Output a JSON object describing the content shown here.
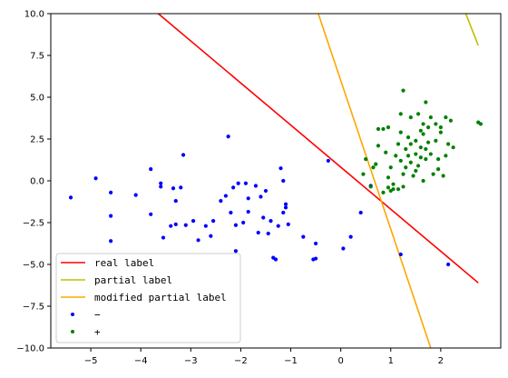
{
  "chart_data": {
    "type": "scatter",
    "xlim": [
      -5.8,
      3.2
    ],
    "ylim": [
      -10,
      10
    ],
    "x_ticks": [
      -5,
      -4,
      -3,
      -2,
      -1,
      0,
      1,
      2
    ],
    "y_ticks": [
      10.0,
      7.5,
      5.0,
      2.5,
      0.0,
      -2.5,
      -5.0,
      -7.5,
      -10.0
    ],
    "x_tick_labels": [
      "−5",
      "−4",
      "−3",
      "−2",
      "−1",
      "0",
      "1",
      "2"
    ],
    "y_tick_labels": [
      "10.0",
      "7.5",
      "5.0",
      "2.5",
      "0.0",
      "−2.5",
      "−5.0",
      "−7.5",
      "−10.0"
    ],
    "grid": false,
    "legend_position": "lower-left",
    "lines": [
      {
        "name": "real label",
        "color": "#ff0000",
        "x": [
          -3.65,
          2.75
        ],
        "y": [
          10.0,
          -6.1
        ]
      },
      {
        "name": "partial label",
        "color": "#bfbf00",
        "x": [
          2.5,
          2.75
        ],
        "y": [
          10.0,
          8.1
        ]
      },
      {
        "name": "modified partial label",
        "color": "#ffa500",
        "x": [
          -0.45,
          1.8
        ],
        "y": [
          10.0,
          -10.0
        ]
      }
    ],
    "series": [
      {
        "name": "−",
        "color": "#0000ff",
        "points": [
          [
            -5.4,
            -1.0
          ],
          [
            -4.9,
            0.15
          ],
          [
            -4.6,
            -0.7
          ],
          [
            -4.6,
            -2.1
          ],
          [
            -4.6,
            -3.6
          ],
          [
            -4.1,
            -0.85
          ],
          [
            -3.8,
            0.7
          ],
          [
            -3.8,
            -2.0
          ],
          [
            -3.6,
            -0.15
          ],
          [
            -3.6,
            -0.35
          ],
          [
            -3.55,
            -3.4
          ],
          [
            -3.4,
            -2.7
          ],
          [
            -3.35,
            -0.45
          ],
          [
            -3.3,
            -1.2
          ],
          [
            -3.3,
            -2.6
          ],
          [
            -3.2,
            -0.4
          ],
          [
            -3.15,
            1.55
          ],
          [
            -3.1,
            -2.65
          ],
          [
            -2.95,
            -2.4
          ],
          [
            -2.85,
            -3.55
          ],
          [
            -2.7,
            -2.7
          ],
          [
            -2.6,
            -3.3
          ],
          [
            -2.55,
            -2.4
          ],
          [
            -2.4,
            -1.2
          ],
          [
            -2.3,
            -0.9
          ],
          [
            -2.25,
            2.65
          ],
          [
            -2.2,
            -1.9
          ],
          [
            -2.15,
            -0.4
          ],
          [
            -2.1,
            -4.2
          ],
          [
            -2.1,
            -2.65
          ],
          [
            -2.05,
            -0.15
          ],
          [
            -1.95,
            -2.5
          ],
          [
            -1.9,
            -0.15
          ],
          [
            -1.85,
            -1.05
          ],
          [
            -1.85,
            -1.85
          ],
          [
            -1.7,
            -0.3
          ],
          [
            -1.65,
            -3.1
          ],
          [
            -1.6,
            -0.95
          ],
          [
            -1.55,
            -2.2
          ],
          [
            -1.5,
            -0.6
          ],
          [
            -1.45,
            -3.15
          ],
          [
            -1.4,
            -2.4
          ],
          [
            -1.35,
            -4.6
          ],
          [
            -1.3,
            -4.7
          ],
          [
            -1.25,
            -2.7
          ],
          [
            -1.2,
            0.75
          ],
          [
            -1.15,
            -1.9
          ],
          [
            -1.15,
            0.0
          ],
          [
            -1.1,
            -1.4
          ],
          [
            -1.1,
            -1.6
          ],
          [
            -1.05,
            -2.6
          ],
          [
            -0.75,
            -3.35
          ],
          [
            -0.55,
            -4.7
          ],
          [
            -0.5,
            -3.75
          ],
          [
            -0.5,
            -4.65
          ],
          [
            -0.25,
            1.2
          ],
          [
            0.05,
            -4.05
          ],
          [
            0.2,
            -3.35
          ],
          [
            0.4,
            -1.9
          ],
          [
            0.6,
            -0.3
          ],
          [
            1.2,
            -4.4
          ],
          [
            2.15,
            -5.0
          ]
        ]
      },
      {
        "name": "+",
        "color": "#008000",
        "points": [
          [
            0.45,
            0.4
          ],
          [
            0.5,
            1.3
          ],
          [
            0.6,
            -0.35
          ],
          [
            0.65,
            0.8
          ],
          [
            0.7,
            1.0
          ],
          [
            0.75,
            2.1
          ],
          [
            0.75,
            3.1
          ],
          [
            0.85,
            3.1
          ],
          [
            0.85,
            -0.7
          ],
          [
            0.9,
            1.7
          ],
          [
            0.95,
            3.2
          ],
          [
            0.95,
            0.2
          ],
          [
            0.95,
            -0.4
          ],
          [
            1.0,
            0.8
          ],
          [
            1.0,
            -0.6
          ],
          [
            1.05,
            -0.2
          ],
          [
            1.05,
            -0.5
          ],
          [
            1.1,
            1.5
          ],
          [
            1.15,
            2.2
          ],
          [
            1.15,
            -0.5
          ],
          [
            1.2,
            4.0
          ],
          [
            1.2,
            2.9
          ],
          [
            1.2,
            1.2
          ],
          [
            1.25,
            5.4
          ],
          [
            1.25,
            0.4
          ],
          [
            1.25,
            -0.35
          ],
          [
            1.3,
            1.9
          ],
          [
            1.3,
            0.8
          ],
          [
            1.35,
            2.6
          ],
          [
            1.35,
            1.5
          ],
          [
            1.4,
            3.8
          ],
          [
            1.4,
            2.2
          ],
          [
            1.4,
            1.1
          ],
          [
            1.45,
            0.3
          ],
          [
            1.5,
            1.6
          ],
          [
            1.5,
            0.6
          ],
          [
            1.5,
            2.4
          ],
          [
            1.55,
            4.0
          ],
          [
            1.55,
            0.9
          ],
          [
            1.6,
            3.0
          ],
          [
            1.6,
            2.0
          ],
          [
            1.6,
            1.4
          ],
          [
            1.65,
            2.8
          ],
          [
            1.65,
            3.4
          ],
          [
            1.65,
            0.0
          ],
          [
            1.7,
            4.7
          ],
          [
            1.7,
            1.9
          ],
          [
            1.7,
            1.3
          ],
          [
            1.75,
            3.2
          ],
          [
            1.75,
            2.3
          ],
          [
            1.8,
            3.8
          ],
          [
            1.8,
            1.6
          ],
          [
            1.85,
            0.4
          ],
          [
            1.9,
            3.4
          ],
          [
            1.9,
            2.4
          ],
          [
            1.95,
            1.3
          ],
          [
            1.95,
            0.7
          ],
          [
            2.0,
            2.9
          ],
          [
            2.0,
            3.2
          ],
          [
            2.05,
            0.3
          ],
          [
            2.1,
            3.8
          ],
          [
            2.1,
            1.5
          ],
          [
            2.15,
            2.2
          ],
          [
            2.2,
            3.6
          ],
          [
            2.25,
            2.0
          ],
          [
            2.75,
            3.5
          ],
          [
            2.8,
            3.4
          ]
        ]
      }
    ]
  }
}
